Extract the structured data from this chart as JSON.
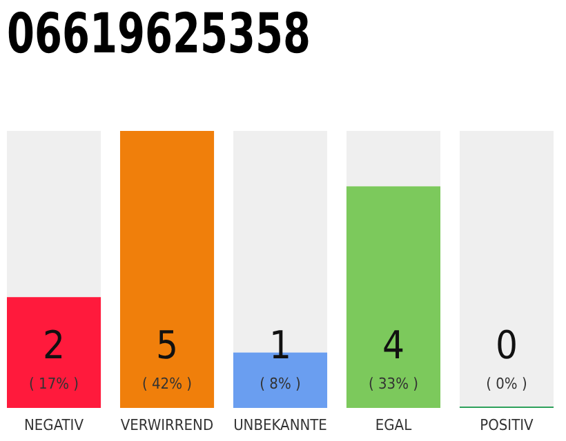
{
  "chart_data": {
    "type": "bar",
    "title": "06619625358",
    "categories": [
      "NEGATIV",
      "VERWIRREND",
      "UNBEKANNTE",
      "EGAL",
      "POSITIV"
    ],
    "values": [
      2,
      5,
      1,
      4,
      0
    ],
    "colors": [
      "#ff1a3c",
      "#f07f0b",
      "#6a9ef0",
      "#7cc95c",
      "#2ca05a"
    ],
    "annotations": [
      "( 17% )",
      "( 42% )",
      "( 8% )",
      "( 33% )",
      "( 0% )"
    ],
    "data_labels": true,
    "tick_labels": "x"
  }
}
